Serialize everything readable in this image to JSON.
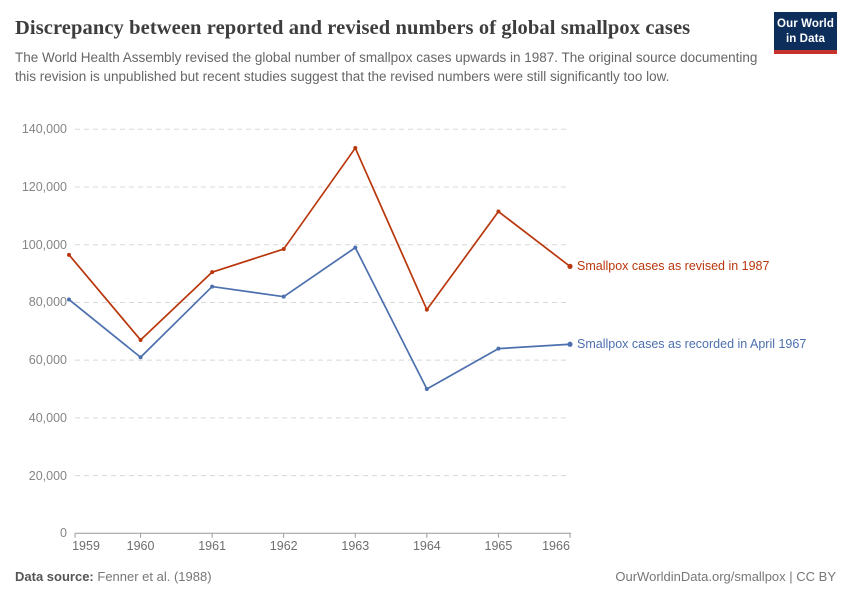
{
  "header": {
    "title": "Discrepancy between reported and revised numbers of global smallpox cases",
    "subtitle": "The World Health Assembly revised the global number of smallpox cases upwards in 1987. The original source documenting this revision is unpublished but recent studies suggest that the revised numbers were still significantly too low.",
    "logo": {
      "line1": "Our World",
      "line2": "in Data",
      "bg_color": "#0d2e5b",
      "stripe_color": "#c4342c"
    }
  },
  "chart_data": {
    "type": "line",
    "title": "Discrepancy between reported and revised numbers of global smallpox cases",
    "x": [
      1959,
      1960,
      1961,
      1962,
      1963,
      1964,
      1965,
      1966
    ],
    "series": [
      {
        "name": "Smallpox cases as revised in 1987",
        "color": "#b9370c",
        "values": [
          96500,
          67000,
          90500,
          98500,
          133500,
          77500,
          111500,
          92500
        ]
      },
      {
        "name": "Smallpox cases as recorded in April 1967",
        "color": "#4c70ae",
        "values": [
          81000,
          61000,
          85500,
          82000,
          99000,
          50000,
          64000,
          65500
        ]
      }
    ],
    "xlabel": "",
    "ylabel": "",
    "ylim": [
      0,
      140000
    ],
    "yticks": {
      "values": [
        0,
        20000,
        40000,
        60000,
        80000,
        100000,
        120000,
        140000
      ],
      "labels": [
        "0",
        "20,000",
        "40,000",
        "60,000",
        "80,000",
        "100,000",
        "120,000",
        "140,000"
      ]
    },
    "xtick_labels": [
      "1959",
      "1960",
      "1961",
      "1962",
      "1963",
      "1964",
      "1965",
      "1966"
    ],
    "grid": "horizontal-dashed",
    "grid_color": "#d8d8d8",
    "axis_color": "#9a9a9a",
    "legend_position": "right-of-line-ends"
  },
  "footer": {
    "datasource_label": "Data source:",
    "datasource_value": "Fenner et al. (1988)",
    "credit": "OurWorldinData.org/smallpox | CC BY"
  }
}
